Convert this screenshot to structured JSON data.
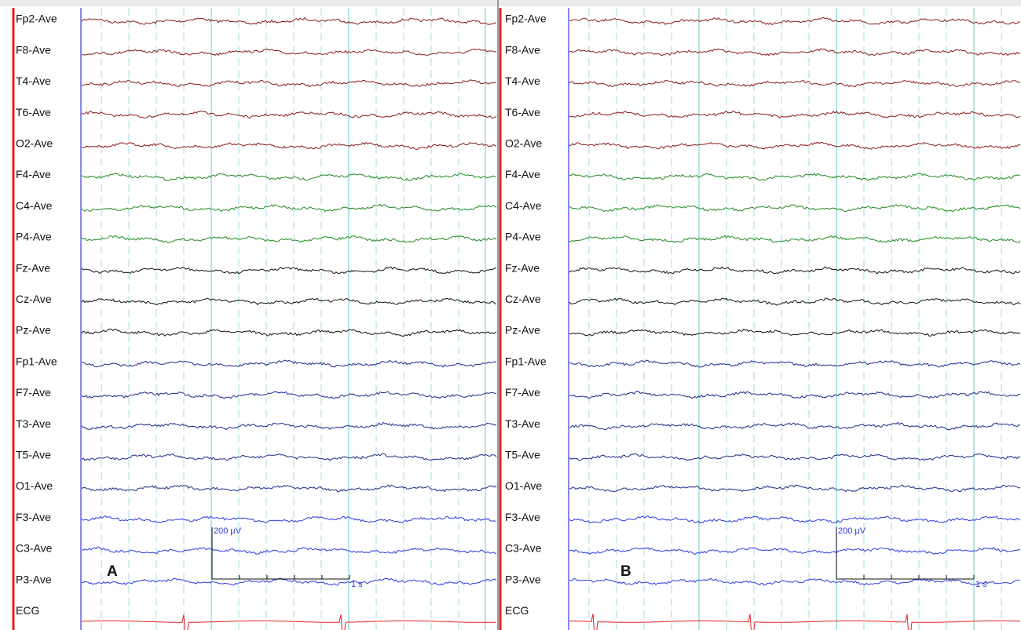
{
  "panels": [
    {
      "label": "A",
      "channels": [
        "Fp2-Ave",
        "F8-Ave",
        "T4-Ave",
        "T6-Ave",
        "O2-Ave",
        "F4-Ave",
        "C4-Ave",
        "P4-Ave",
        "Fz-Ave",
        "Cz-Ave",
        "Pz-Ave",
        "Fp1-Ave",
        "F7-Ave",
        "T3-Ave",
        "T5-Ave",
        "O1-Ave",
        "F3-Ave",
        "C3-Ave",
        "P3-Ave",
        "ECG"
      ],
      "scale": {
        "amplitude": "200 µV",
        "time": "1 s"
      }
    },
    {
      "label": "B",
      "channels": [
        "Fp2-Ave",
        "F8-Ave",
        "T4-Ave",
        "T6-Ave",
        "O2-Ave",
        "F4-Ave",
        "C4-Ave",
        "P4-Ave",
        "Fz-Ave",
        "Cz-Ave",
        "Pz-Ave",
        "Fp1-Ave",
        "F7-Ave",
        "T3-Ave",
        "T5-Ave",
        "O1-Ave",
        "F3-Ave",
        "C3-Ave",
        "P3-Ave",
        "ECG"
      ],
      "scale": {
        "amplitude": "200 µV",
        "time": "1 s"
      }
    }
  ]
}
